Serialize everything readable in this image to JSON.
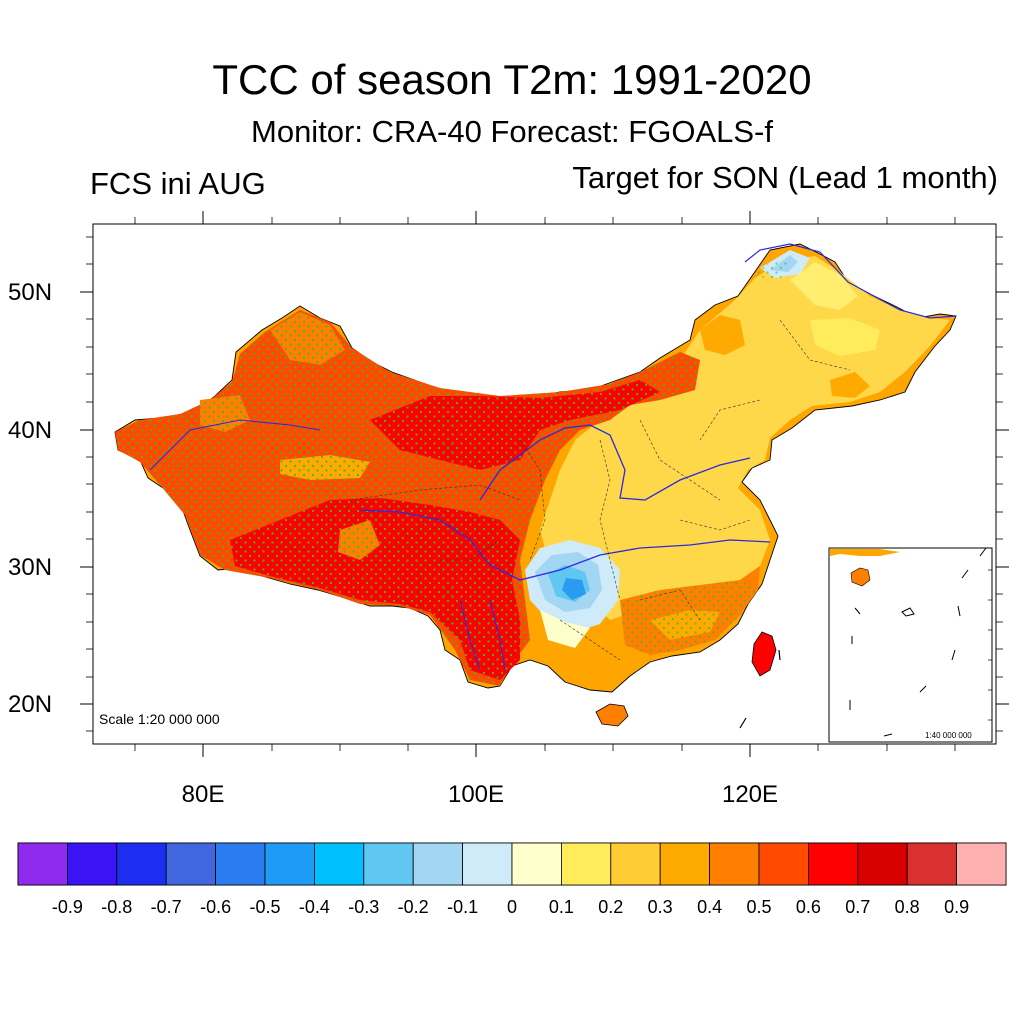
{
  "title": "TCC of season T2m: 1991-2020",
  "subtitle": "Monitor: CRA-40   Forecast: FGOALS-f",
  "left_label": "FCS ini AUG",
  "right_label": "Target for SON (Lead 1 month)",
  "axes": {
    "y_ticks": [
      "50N",
      "40N",
      "30N",
      "20N"
    ],
    "x_ticks": [
      "80E",
      "100E",
      "120E"
    ]
  },
  "scale_main": "Scale 1:20 000 000",
  "scale_inset": "1:40 000 000",
  "colorbar": {
    "colors": [
      "#8f2aef",
      "#3a14f5",
      "#1c2ff0",
      "#4066e0",
      "#2a7cf0",
      "#1e9cf5",
      "#00c0ff",
      "#60c6f2",
      "#a2d6f2",
      "#cfeaf8",
      "#ffffcc",
      "#ffec5c",
      "#ffcc33",
      "#ffaa00",
      "#ff8000",
      "#ff4a00",
      "#ff0000",
      "#d90000",
      "#d93030",
      "#ffb0b0"
    ],
    "labels": [
      "-0.9",
      "-0.8",
      "-0.7",
      "-0.6",
      "-0.5",
      "-0.4",
      "-0.3",
      "-0.2",
      "-0.1",
      "0",
      "0.1",
      "0.2",
      "0.3",
      "0.4",
      "0.5",
      "0.6",
      "0.7",
      "0.8",
      "0.9"
    ]
  },
  "map": {
    "region": "China",
    "lon_range": [
      72,
      138
    ],
    "lat_range": [
      17,
      55
    ],
    "stippling": "green dots mark significant areas"
  }
}
